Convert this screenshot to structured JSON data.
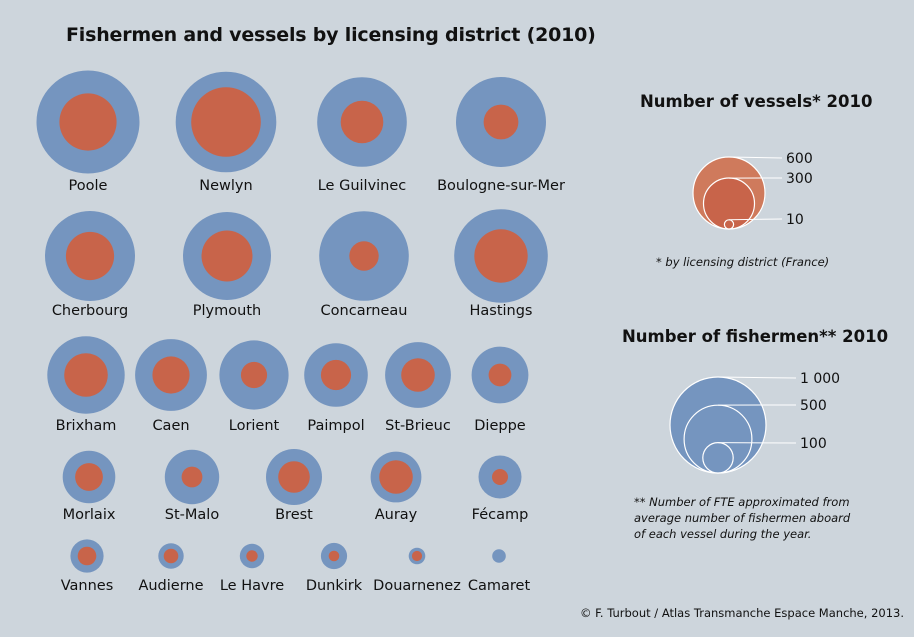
{
  "title": "Fishermen and vessels by licensing district (2010)",
  "colors": {
    "fishermen": "#7595bf",
    "vessels": "#c8644a",
    "vessels_legend": "#cf7a5c",
    "background": "#cdd5dc"
  },
  "legend_vessels": {
    "title": "Number of vessels* 2010",
    "values": [
      600,
      300,
      10
    ],
    "labels": [
      "600",
      "300",
      "10"
    ],
    "note": "* by licensing district (France)"
  },
  "legend_fishermen": {
    "title": "Number of fishermen**  2010",
    "values": [
      1000,
      500,
      100
    ],
    "labels": [
      "1 000",
      "500",
      "100"
    ],
    "note": [
      "** Number of FTE approximated from",
      "average number of fishermen aboard",
      "of each vessel during the year."
    ]
  },
  "credit": "© F. Turbout / Atlas Transmanche Espace Manche, 2013.",
  "chart_data": {
    "type": "proportional-symbols",
    "series": [
      {
        "name": "Number of fishermen",
        "key": "fishermen"
      },
      {
        "name": "Number of vessels",
        "key": "vessels"
      }
    ],
    "districts": [
      {
        "name": "Poole",
        "fishermen": 1150,
        "vessels": 380,
        "row": 0
      },
      {
        "name": "Newlyn",
        "fishermen": 1100,
        "vessels": 560,
        "row": 0
      },
      {
        "name": "Le Guilvinec",
        "fishermen": 870,
        "vessels": 210,
        "row": 0
      },
      {
        "name": "Boulogne-sur-Mer",
        "fishermen": 880,
        "vessels": 140,
        "row": 0
      },
      {
        "name": "Cherbourg",
        "fishermen": 880,
        "vessels": 270,
        "row": 1
      },
      {
        "name": "Plymouth",
        "fishermen": 840,
        "vessels": 300,
        "row": 1
      },
      {
        "name": "Concarneau",
        "fishermen": 870,
        "vessels": 100,
        "row": 1
      },
      {
        "name": "Hastings",
        "fishermen": 950,
        "vessels": 330,
        "row": 1
      },
      {
        "name": "Brixham",
        "fishermen": 650,
        "vessels": 220,
        "row": 2
      },
      {
        "name": "Caen",
        "fishermen": 560,
        "vessels": 160,
        "row": 2
      },
      {
        "name": "Lorient",
        "fishermen": 520,
        "vessels": 80,
        "row": 2
      },
      {
        "name": "Paimpol",
        "fishermen": 440,
        "vessels": 105,
        "row": 2
      },
      {
        "name": "St-Brieuc",
        "fishermen": 470,
        "vessels": 130,
        "row": 2
      },
      {
        "name": "Dieppe",
        "fishermen": 350,
        "vessels": 60,
        "row": 2
      },
      {
        "name": "Morlaix",
        "fishermen": 300,
        "vessels": 90,
        "row": 3
      },
      {
        "name": "St-Malo",
        "fishermen": 320,
        "vessels": 50,
        "row": 3
      },
      {
        "name": "Brest",
        "fishermen": 340,
        "vessels": 115,
        "row": 3
      },
      {
        "name": "Auray",
        "fishermen": 280,
        "vessels": 130,
        "row": 3
      },
      {
        "name": "Fécamp",
        "fishermen": 200,
        "vessels": 30,
        "row": 3
      },
      {
        "name": "Vannes",
        "fishermen": 120,
        "vessels": 40,
        "row": 4
      },
      {
        "name": "Audierne",
        "fishermen": 70,
        "vessels": 25,
        "row": 4
      },
      {
        "name": "Le Havre",
        "fishermen": 65,
        "vessels": 15,
        "row": 4
      },
      {
        "name": "Dunkirk",
        "fishermen": 75,
        "vessels": 13,
        "row": 4
      },
      {
        "name": "Douarnenez",
        "fishermen": 30,
        "vessels": 12,
        "row": 4
      },
      {
        "name": "Camaret",
        "fishermen": 20,
        "vessels": 0
      }
    ]
  }
}
